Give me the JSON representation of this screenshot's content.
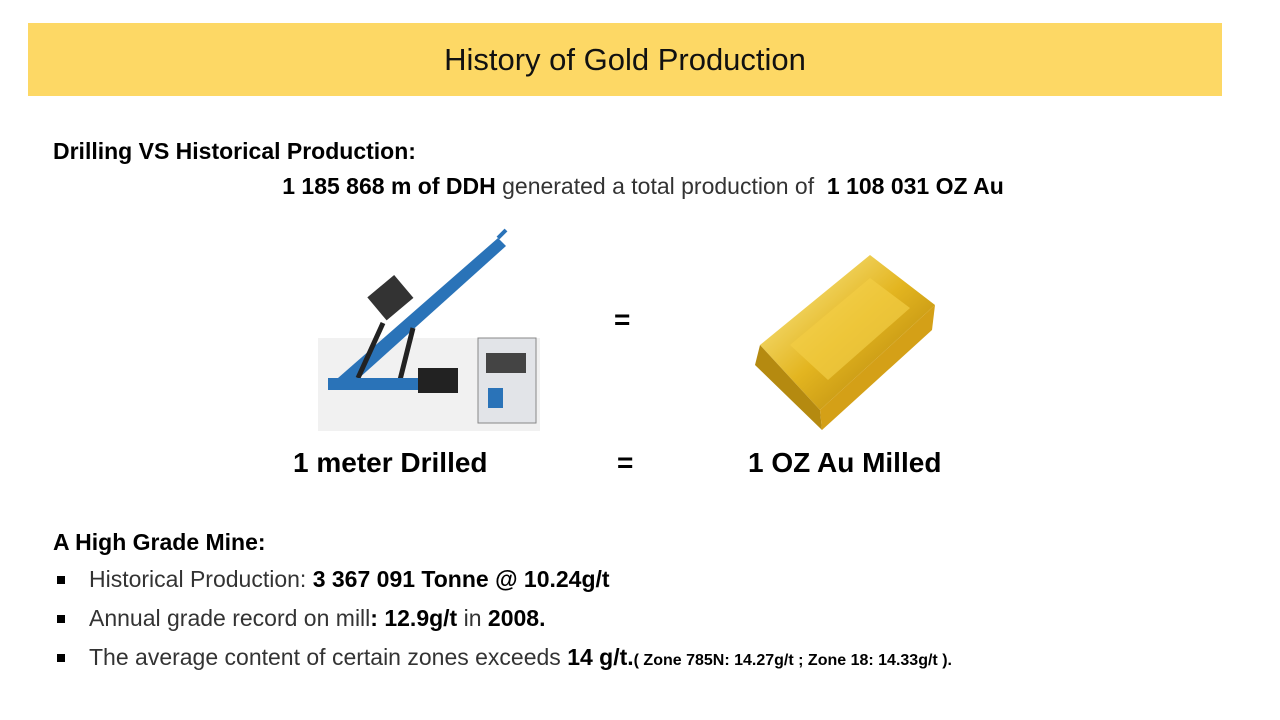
{
  "header": {
    "title": "History of Gold Production"
  },
  "drilling": {
    "heading": "Drilling VS Historical Production:",
    "summary": [
      "1 185 868 m of DDH",
      " generated a total production of ",
      "1 108 031 OZ Au"
    ]
  },
  "equation": {
    "image_equals": "=",
    "left": "1 meter Drilled",
    "equals": "=",
    "right": "1 OZ Au Milled"
  },
  "mine": {
    "heading": "A High Grade Mine:",
    "bullets": [
      [
        "Historical Production: ",
        "3 367 091 Tonne @ 10.24g/t"
      ],
      [
        "Annual grade record on mill",
        ": ",
        "12.9g/t",
        " in ",
        "2008."
      ],
      [
        "The average content of certain zones exceeds ",
        "14 g/t.",
        "( Zone 785N: 14.27g/t ; Zone 18: 14.33g/t )."
      ]
    ]
  }
}
